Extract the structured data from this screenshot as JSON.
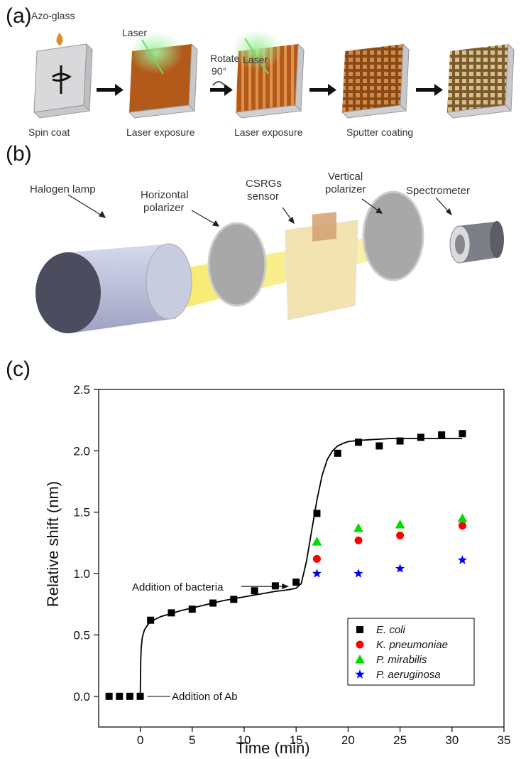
{
  "panel_labels": [
    "(a)",
    "(b)",
    "(c)"
  ],
  "panel_a": {
    "labels": {
      "azo_glass": "Azo-glass",
      "laser": "Laser",
      "rotate": "Rotate",
      "degrees": "90°",
      "laser2": "Laser",
      "spin_coat": "Spin coat",
      "laser_exposure_1": "Laser exposure",
      "laser_exposure_2": "Laser exposure",
      "sputter_coating": "Sputter coating"
    },
    "colors": {
      "film": "#b35a1a",
      "glass": "#d9d9dc",
      "laser_glow": "#7ee07a",
      "gold": "#b8a070"
    }
  },
  "panel_b": {
    "labels": {
      "halogen_lamp": "Halogen lamp",
      "horizontal_polarizer_1": "Horizontal",
      "horizontal_polarizer_2": "polarizer",
      "csrgs_1": "CSRGs",
      "csrgs_2": "sensor",
      "vertical_polarizer_1": "Vertical",
      "vertical_polarizer_2": "polarizer",
      "spectrometer": "Spectrometer"
    },
    "colors": {
      "lamp": "#b8bdd8",
      "beam": "#f6e860",
      "polarizer": "#a8a8a8",
      "sensor": "#f3e3b0"
    }
  },
  "chart_data": {
    "type": "scatter",
    "xlabel": "Time (min)",
    "ylabel": "Relative shift (nm)",
    "xlim": [
      -4,
      35
    ],
    "ylim": [
      -0.25,
      2.5
    ],
    "xticks": [
      0,
      5,
      10,
      15,
      20,
      25,
      30,
      35
    ],
    "yticks": [
      0.0,
      0.5,
      1.0,
      1.5,
      2.0,
      2.5
    ],
    "ytick_labels": [
      "0.0",
      "0.5",
      "1.0",
      "1.5",
      "2.0",
      "2.5"
    ],
    "series": [
      {
        "name": "E. coli",
        "marker": "square",
        "color": "#000000",
        "x": [
          -3,
          -2,
          -1,
          0,
          1,
          3,
          5,
          7,
          9,
          11,
          13,
          15,
          17,
          19,
          21,
          23,
          25,
          27,
          29,
          31
        ],
        "y": [
          0.0,
          0.0,
          0.0,
          0.0,
          0.62,
          0.68,
          0.71,
          0.76,
          0.79,
          0.86,
          0.9,
          0.93,
          1.49,
          1.98,
          2.07,
          2.04,
          2.08,
          2.11,
          2.13,
          2.14
        ]
      },
      {
        "name": "K. pneumoniae",
        "marker": "circle",
        "color": "#ff0000",
        "x": [
          17,
          21,
          25,
          31
        ],
        "y": [
          1.12,
          1.27,
          1.31,
          1.39
        ]
      },
      {
        "name": "P. mirabilis",
        "marker": "triangle",
        "color": "#00dd00",
        "x": [
          17,
          21,
          25,
          31
        ],
        "y": [
          1.26,
          1.37,
          1.4,
          1.45
        ]
      },
      {
        "name": "P. aeruginosa",
        "marker": "star",
        "color": "#0000ee",
        "x": [
          17,
          21,
          25,
          31
        ],
        "y": [
          1.0,
          1.0,
          1.04,
          1.11
        ]
      }
    ],
    "fit_curve": {
      "x": [
        0,
        0.05,
        0.1,
        0.2,
        0.4,
        0.7,
        1,
        1.5,
        2,
        3,
        4,
        5,
        6,
        7,
        8,
        9,
        10,
        11,
        12,
        13,
        14,
        15,
        15.5,
        16,
        16.5,
        17,
        17.5,
        18,
        18.5,
        19,
        19.5,
        20,
        21,
        22,
        23,
        24,
        26,
        28,
        31
      ],
      "y": [
        0.0,
        0.3,
        0.4,
        0.48,
        0.54,
        0.58,
        0.61,
        0.63,
        0.65,
        0.675,
        0.7,
        0.72,
        0.74,
        0.76,
        0.78,
        0.795,
        0.81,
        0.825,
        0.84,
        0.855,
        0.865,
        0.88,
        0.92,
        1.1,
        1.35,
        1.6,
        1.8,
        1.93,
        2.0,
        2.04,
        2.06,
        2.075,
        2.085,
        2.09,
        2.095,
        2.1,
        2.1,
        2.1,
        2.1
      ]
    },
    "annotations": [
      {
        "text": "Addition of bacteria",
        "x": 15,
        "y": 0.93
      },
      {
        "text": "Addition of Ab",
        "x": 0,
        "y": 0.0
      }
    ],
    "legend_position": "bottom-right"
  }
}
